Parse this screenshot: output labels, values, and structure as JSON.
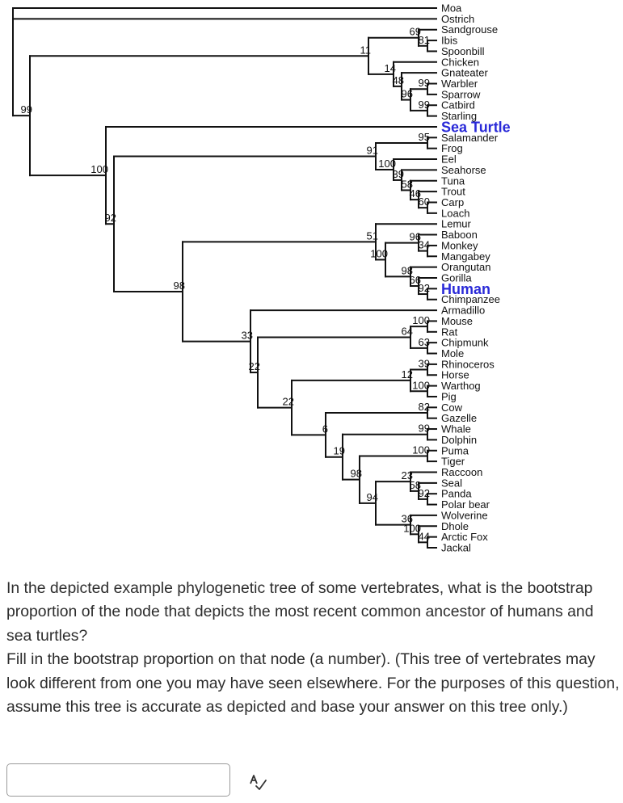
{
  "tree": {
    "highlight_color": "#2a2ad8",
    "root": {
      "children": [
        "Moa",
        "Ostrich",
        {
          "support": "99",
          "children": [
            {
              "support": "11",
              "children": [
                {
                  "support": "69",
                  "children": [
                    "Sandgrouse",
                    {
                      "support": "81",
                      "children": [
                        "Ibis",
                        "Spoonbill"
                      ]
                    }
                  ]
                },
                {
                  "support": "14",
                  "children": [
                    "Chicken",
                    {
                      "support": "48",
                      "children": [
                        "Gnateater",
                        {
                          "support": "96",
                          "children": [
                            {
                              "support": "99",
                              "children": [
                                "Warbler",
                                "Sparrow"
                              ]
                            },
                            {
                              "support": "99",
                              "children": [
                                "Catbird",
                                "Starling"
                              ]
                            }
                          ]
                        }
                      ]
                    }
                  ]
                }
              ]
            },
            {
              "support": "100",
              "children": [
                {
                  "name": "Sea Turtle",
                  "highlight": true
                },
                {
                  "support": "92",
                  "children": [
                    {
                      "support": "91",
                      "children": [
                        {
                          "support": "95",
                          "children": [
                            "Salamander",
                            "Frog"
                          ]
                        },
                        {
                          "support": "100",
                          "children": [
                            "Eel",
                            {
                              "support": "39",
                              "children": [
                                "Seahorse",
                                {
                                  "support": "58",
                                  "children": [
                                    "Tuna",
                                    {
                                      "support": "46",
                                      "children": [
                                        "Trout",
                                        {
                                          "support": "60",
                                          "children": [
                                            "Carp",
                                            "Loach"
                                          ]
                                        }
                                      ]
                                    }
                                  ]
                                }
                              ]
                            }
                          ]
                        }
                      ]
                    },
                    {
                      "support": "98",
                      "children": [
                        {
                          "support": "51",
                          "children": [
                            "Lemur",
                            {
                              "support": "100",
                              "children": [
                                {
                                  "support": "96",
                                  "children": [
                                    "Baboon",
                                    {
                                      "support": "34",
                                      "children": [
                                        "Monkey",
                                        "Mangabey"
                                      ]
                                    }
                                  ]
                                },
                                {
                                  "support": "98",
                                  "children": [
                                    "Orangutan",
                                    {
                                      "support": "66",
                                      "children": [
                                        "Gorilla",
                                        {
                                          "support": "92",
                                          "children": [
                                            {
                                              "name": "Human",
                                              "highlight": true
                                            },
                                            "Chimpanzee"
                                          ]
                                        }
                                      ]
                                    }
                                  ]
                                }
                              ]
                            }
                          ]
                        },
                        {
                          "support": "33",
                          "children": [
                            "Armadillo",
                            {
                              "support": "22",
                              "children": [
                                {
                                  "support": "64",
                                  "children": [
                                    {
                                      "support": "100",
                                      "children": [
                                        "Mouse",
                                        "Rat"
                                      ]
                                    },
                                    {
                                      "support": "63",
                                      "children": [
                                        "Chipmunk",
                                        "Mole"
                                      ]
                                    }
                                  ]
                                },
                                {
                                  "support": "22",
                                  "children": [
                                    {
                                      "support": "12",
                                      "children": [
                                        {
                                          "support": "39",
                                          "children": [
                                            "Rhinoceros",
                                            "Horse"
                                          ]
                                        },
                                        {
                                          "support": "100",
                                          "children": [
                                            "Warthog",
                                            "Pig"
                                          ]
                                        }
                                      ]
                                    },
                                    {
                                      "support": "6",
                                      "children": [
                                        {
                                          "support": "82",
                                          "children": [
                                            "Cow",
                                            "Gazelle"
                                          ]
                                        },
                                        {
                                          "support": "19",
                                          "children": [
                                            {
                                              "support": "99",
                                              "children": [
                                                "Whale",
                                                "Dolphin"
                                              ]
                                            },
                                            {
                                              "support": "98",
                                              "children": [
                                                {
                                                  "support": "100",
                                                  "children": [
                                                    "Puma",
                                                    "Tiger"
                                                  ]
                                                },
                                                {
                                                  "support": "94",
                                                  "children": [
                                                    {
                                                      "support": "23",
                                                      "children": [
                                                        "Raccoon",
                                                        {
                                                          "support": "58",
                                                          "children": [
                                                            "Seal",
                                                            {
                                                              "support": "92",
                                                              "children": [
                                                                "Panda",
                                                                "Polar bear"
                                                              ]
                                                            }
                                                          ]
                                                        }
                                                      ]
                                                    },
                                                    {
                                                      "support": "36",
                                                      "children": [
                                                        "Wolverine",
                                                        {
                                                          "support": "100",
                                                          "children": [
                                                            "Dhole",
                                                            {
                                                              "support": "44",
                                                              "children": [
                                                                "Arctic Fox",
                                                                "Jackal"
                                                              ]
                                                            }
                                                          ]
                                                        }
                                                      ]
                                                    }
                                                  ]
                                                }
                                              ]
                                            }
                                          ]
                                        }
                                      ]
                                    }
                                  ]
                                }
                              ]
                            }
                          ]
                        }
                      ]
                    }
                  ]
                }
              ]
            }
          ]
        }
      ]
    }
  },
  "question": {
    "paragraph1": "In the depicted example phylogenetic tree of some vertebrates, what is the bootstrap proportion of the node that depicts the most recent common ancestor of humans and sea turtles?",
    "paragraph2": "Fill in the bootstrap proportion on that node (a number). (This tree of vertebrates may look different from one you may have seen elsewhere. For the purposes of this question, assume this tree is accurate as depicted and base your answer on this tree only.)"
  },
  "answer": {
    "value": "",
    "placeholder": ""
  },
  "icons": {
    "spellcheck": "spellcheck-icon"
  }
}
